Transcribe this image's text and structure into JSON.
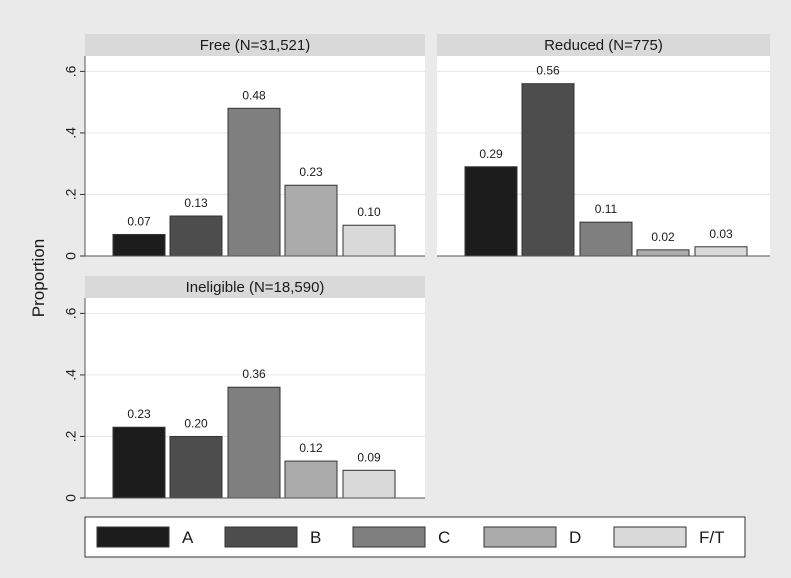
{
  "chart_data": {
    "type": "bar",
    "ylabel": "Proportion",
    "categories": [
      "A",
      "B",
      "C",
      "D",
      "F/T"
    ],
    "colors": [
      "#1c1c1c",
      "#4d4d4d",
      "#7f7f7f",
      "#ababab",
      "#d9d9d9"
    ],
    "yticks": [
      0,
      0.2,
      0.4,
      0.6
    ],
    "ytick_labels": [
      "0",
      ".2",
      ".4",
      ".6"
    ],
    "ylim": [
      0,
      0.6
    ],
    "grid": true,
    "legend_position": "bottom",
    "panels": [
      {
        "title": "Free (N=31,521)",
        "values": [
          0.07,
          0.13,
          0.48,
          0.23,
          0.1
        ],
        "labels": [
          "0.07",
          "0.13",
          "0.48",
          "0.23",
          "0.10"
        ]
      },
      {
        "title": "Reduced (N=775)",
        "values": [
          0.29,
          0.56,
          0.11,
          0.02,
          0.03
        ],
        "labels": [
          "0.29",
          "0.56",
          "0.11",
          "0.02",
          "0.03"
        ]
      },
      {
        "title": "Ineligible (N=18,590)",
        "values": [
          0.23,
          0.2,
          0.36,
          0.12,
          0.09
        ],
        "labels": [
          "0.23",
          "0.20",
          "0.36",
          "0.12",
          "0.09"
        ]
      }
    ]
  }
}
